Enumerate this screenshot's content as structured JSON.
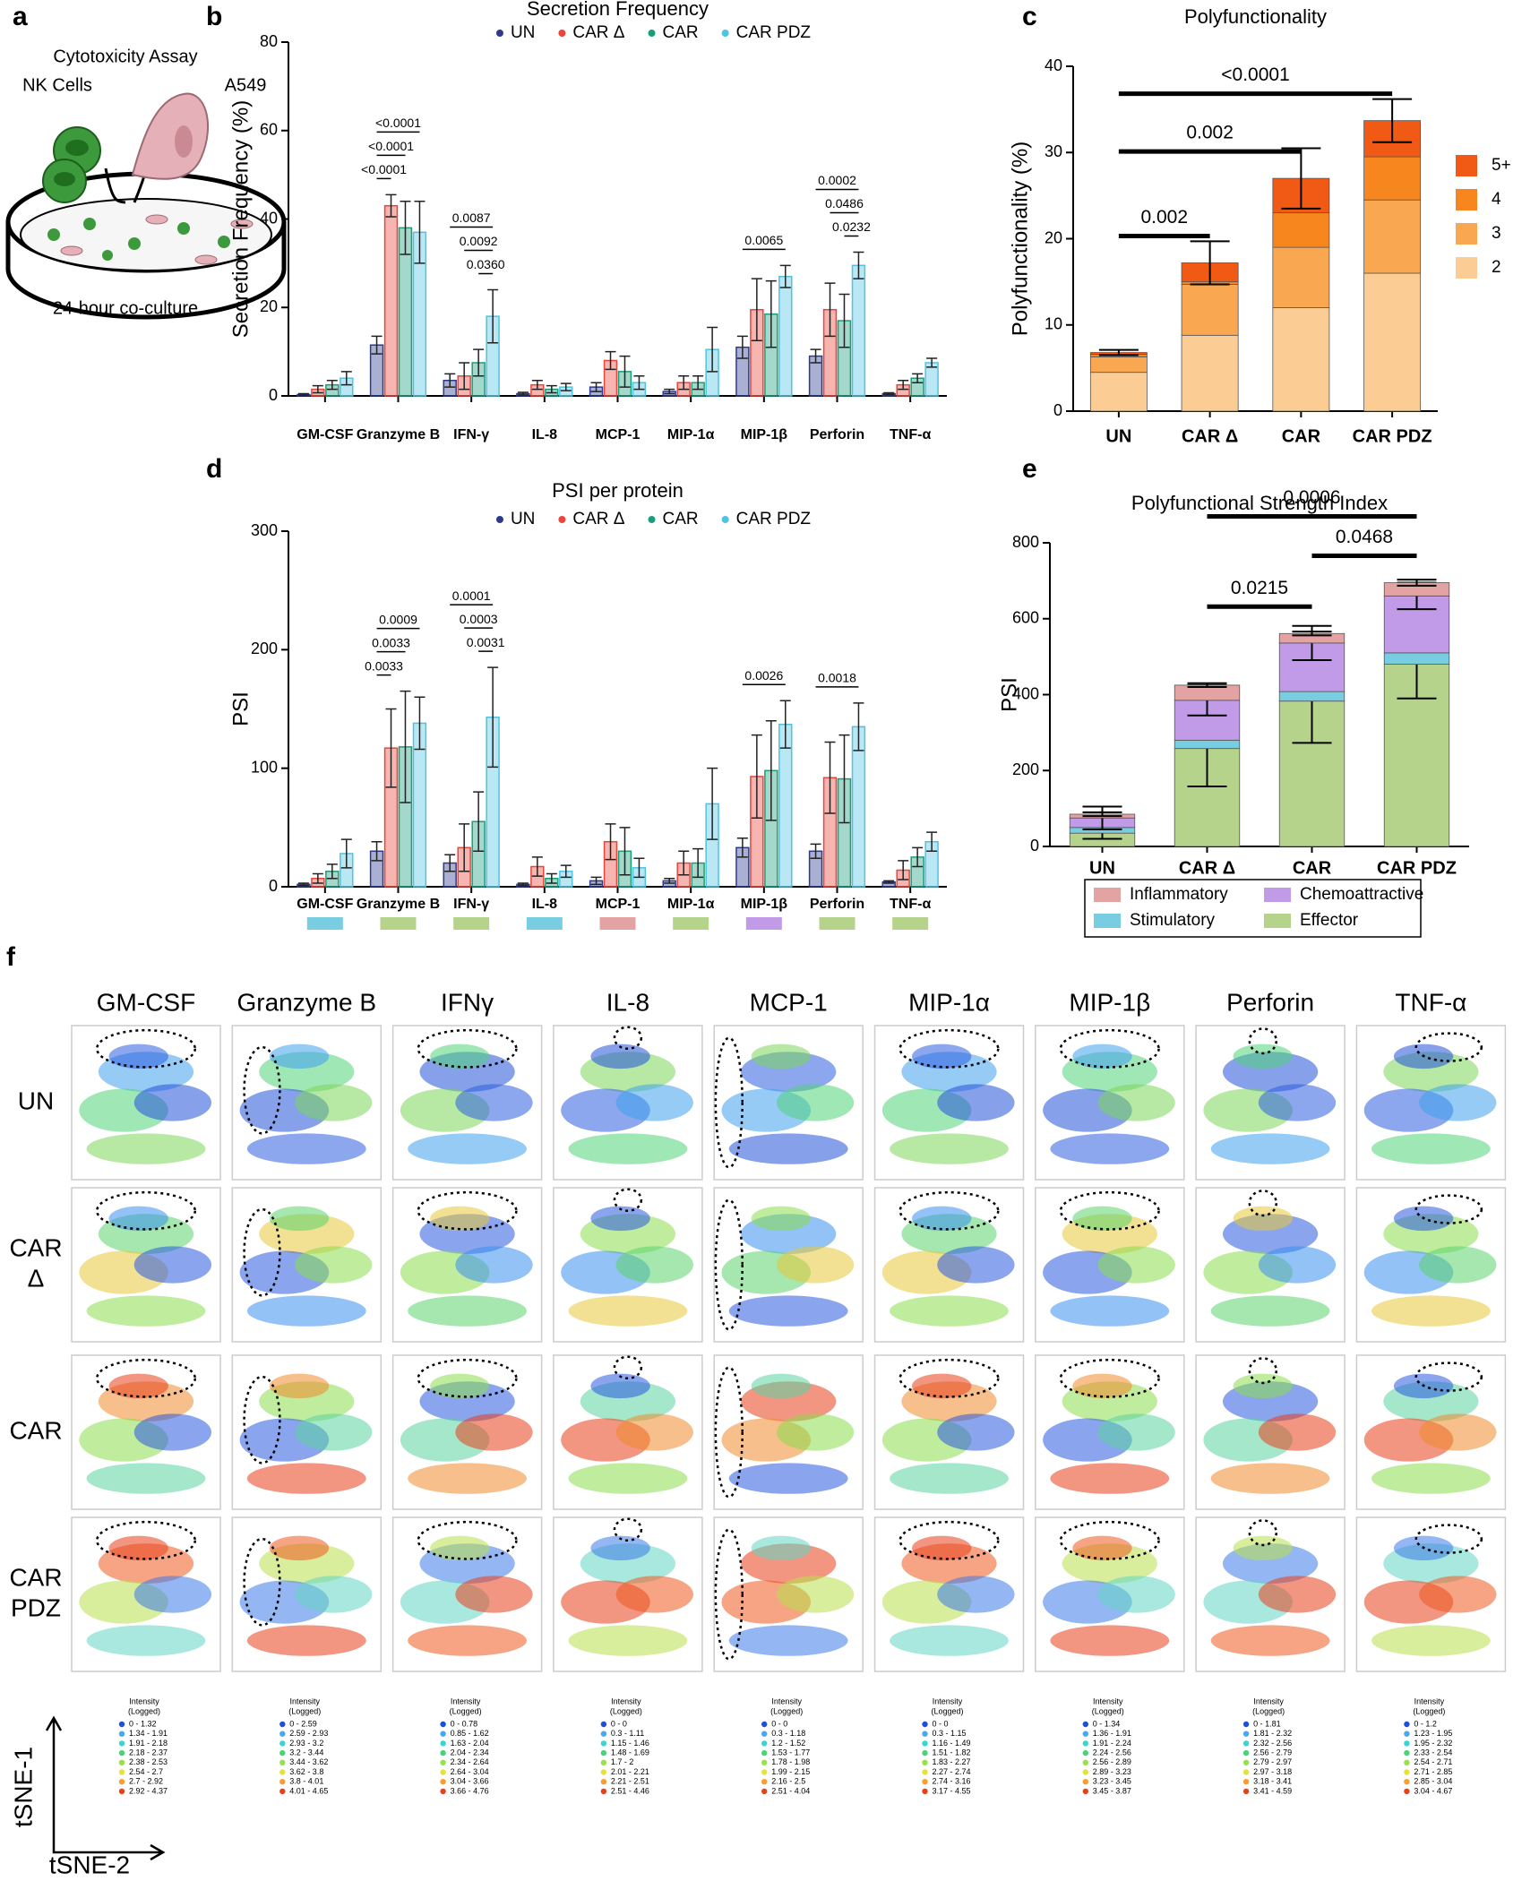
{
  "panel_a": {
    "panel": "a",
    "title": "Cytotoxicity Assay",
    "cells": "NK Cells",
    "target": "A549",
    "caption": "24-hour co-culture"
  },
  "chart_data": [
    {
      "type": "bar",
      "panel": "b",
      "title": "Secretion Frequency",
      "y_label": "Secretion Frequency (%)",
      "legend": "top",
      "categories": [
        "GM-CSF",
        "Granzyme B",
        "IFN-γ",
        "IL-8",
        "MCP-1",
        "MIP-1α",
        "MIP-1β",
        "Perforin",
        "TNF-α"
      ],
      "series": [
        {
          "name": "UN",
          "color": "#2b3a8f",
          "values": [
            0.3,
            11.5,
            3.5,
            0.5,
            2,
            1,
            11,
            9,
            0.5
          ],
          "errors": [
            0.2,
            2,
            1.5,
            0.3,
            1,
            0.5,
            2.5,
            1.5,
            0.2
          ]
        },
        {
          "name": "CAR Δ",
          "color": "#e8453c",
          "values": [
            1.5,
            43,
            4.5,
            2.5,
            8,
            3,
            19.5,
            19.5,
            2.5
          ],
          "errors": [
            0.8,
            2.5,
            3,
            1,
            2,
            1.5,
            7,
            6,
            1
          ]
        },
        {
          "name": "CAR",
          "color": "#1a9e7a",
          "values": [
            2.5,
            38,
            7.5,
            1.5,
            5.5,
            3,
            18.5,
            17,
            4
          ],
          "errors": [
            1,
            6,
            3,
            0.8,
            3.5,
            1.5,
            7.5,
            6,
            1
          ]
        },
        {
          "name": "CAR PDZ",
          "color": "#4fc3e0",
          "values": [
            4,
            37,
            18,
            2,
            3,
            10.5,
            27,
            29.5,
            7.5
          ],
          "errors": [
            1.5,
            7,
            6,
            0.8,
            1.5,
            5,
            2.5,
            3,
            1
          ]
        }
      ],
      "ylim": [
        0,
        80
      ],
      "yticks": [
        0,
        20,
        40,
        60,
        80
      ],
      "annotations": [
        {
          "label": "<0.0001",
          "category": 1,
          "from": 0,
          "to": 1
        },
        {
          "label": "<0.0001",
          "category": 1,
          "from": 0,
          "to": 2
        },
        {
          "label": "<0.0001",
          "category": 1,
          "from": 0,
          "to": 3
        },
        {
          "label": "0.0360",
          "category": 2,
          "from": 2,
          "to": 3
        },
        {
          "label": "0.0092",
          "category": 2,
          "from": 1,
          "to": 3
        },
        {
          "label": "0.0087",
          "category": 2,
          "from": 0,
          "to": 3
        },
        {
          "label": "0.0065",
          "category": 6,
          "from": 0,
          "to": 3
        },
        {
          "label": "0.0232",
          "category": 7,
          "from": 2,
          "to": 3
        },
        {
          "label": "0.0486",
          "category": 7,
          "from": 1,
          "to": 3
        },
        {
          "label": "0.0002",
          "category": 7,
          "from": 0,
          "to": 3
        }
      ]
    },
    {
      "type": "stacked_bar",
      "panel": "c",
      "title": "Polyfunctionality",
      "y_label": "Polyfunctionality (%)",
      "legend": "right",
      "categories": [
        "UN",
        "CAR Δ",
        "CAR",
        "CAR PDZ"
      ],
      "series": [
        {
          "name": "2",
          "color": "#fbcd95",
          "values": [
            4.5,
            8.8,
            12,
            16
          ]
        },
        {
          "name": "3",
          "color": "#f9a851",
          "values": [
            1.8,
            5.9,
            7,
            8.5
          ]
        },
        {
          "name": "4",
          "color": "#f7861f",
          "values": [
            0.3,
            0.3,
            4,
            5
          ]
        },
        {
          "name": "5+",
          "color": "#f05a14",
          "values": [
            0.2,
            2.2,
            4,
            4.2
          ],
          "errors": [
            0.3,
            2.5,
            3.5,
            2.5
          ]
        }
      ],
      "ylim": [
        0,
        40
      ],
      "yticks": [
        0,
        10,
        20,
        30,
        40
      ],
      "annotations": [
        {
          "label": "0.002",
          "from": 0,
          "to": 1
        },
        {
          "label": "0.002",
          "from": 0,
          "to": 2
        },
        {
          "label": "<0.0001",
          "from": 0,
          "to": 3
        }
      ]
    },
    {
      "type": "bar",
      "panel": "d",
      "title": "PSI per protein",
      "y_label": "PSI",
      "legend": "top",
      "categories": [
        "GM-CSF",
        "Granzyme B",
        "IFN-γ",
        "IL-8",
        "MCP-1",
        "MIP-1α",
        "MIP-1β",
        "Perforin",
        "TNF-α"
      ],
      "category_colors": [
        "#79cde0",
        "#b5d38a",
        "#b5d38a",
        "#79cde0",
        "#e3a3a3",
        "#b5d38a",
        "#c29be8",
        "#b5d38a",
        "#b5d38a"
      ],
      "series": [
        {
          "name": "UN",
          "color": "#2b3a8f",
          "values": [
            2,
            30,
            20,
            2,
            5,
            5,
            33,
            30,
            4
          ],
          "errors": [
            1,
            8,
            7,
            1,
            3,
            2,
            8,
            6,
            1
          ]
        },
        {
          "name": "CAR Δ",
          "color": "#e8453c",
          "values": [
            7,
            117,
            33,
            17,
            38,
            20,
            93,
            92,
            14
          ],
          "errors": [
            4,
            33,
            20,
            8,
            15,
            10,
            35,
            30,
            8
          ]
        },
        {
          "name": "CAR",
          "color": "#1a9e7a",
          "values": [
            13,
            118,
            55,
            7,
            30,
            20,
            98,
            91,
            25
          ],
          "errors": [
            6,
            47,
            25,
            4,
            20,
            12,
            42,
            37,
            8
          ]
        },
        {
          "name": "CAR PDZ",
          "color": "#4fc3e0",
          "values": [
            28,
            138,
            143,
            13,
            16,
            70,
            137,
            135,
            38
          ],
          "errors": [
            12,
            22,
            42,
            5,
            8,
            30,
            20,
            20,
            8
          ]
        }
      ],
      "ylim": [
        0,
        300
      ],
      "yticks": [
        0,
        100,
        200,
        300
      ],
      "annotations": [
        {
          "label": "0.0033",
          "category": 1,
          "from": 0,
          "to": 1
        },
        {
          "label": "0.0033",
          "category": 1,
          "from": 0,
          "to": 2
        },
        {
          "label": "0.0009",
          "category": 1,
          "from": 0,
          "to": 3
        },
        {
          "label": "0.0031",
          "category": 2,
          "from": 2,
          "to": 3
        },
        {
          "label": "0.0003",
          "category": 2,
          "from": 1,
          "to": 3
        },
        {
          "label": "0.0001",
          "category": 2,
          "from": 0,
          "to": 3
        },
        {
          "label": "0.0026",
          "category": 6,
          "from": 0,
          "to": 3
        },
        {
          "label": "0.0018",
          "category": 7,
          "from": 0,
          "to": 3
        }
      ]
    },
    {
      "type": "stacked_bar",
      "panel": "e",
      "title": "Polyfunctional Strength Index",
      "y_label": "PSI",
      "legend": "bottom",
      "categories": [
        "UN",
        "CAR Δ",
        "CAR",
        "CAR PDZ"
      ],
      "series": [
        {
          "name": "Effector",
          "color": "#b5d38a",
          "values": [
            35,
            258,
            383,
            480
          ],
          "errors": [
            15,
            100,
            110,
            90
          ]
        },
        {
          "name": "Stimulatory",
          "color": "#79cde0",
          "values": [
            15,
            22,
            25,
            30
          ]
        },
        {
          "name": "Chemoattractive",
          "color": "#c29be8",
          "values": [
            25,
            105,
            128,
            150
          ],
          "errors": [
            30,
            40,
            45,
            35
          ]
        },
        {
          "name": "Inflammatory",
          "color": "#e3a3a3",
          "values": [
            10,
            40,
            25,
            35
          ],
          "errors": [
            5,
            5,
            5,
            8
          ]
        }
      ],
      "ylim": [
        0,
        800
      ],
      "yticks": [
        0,
        200,
        400,
        600,
        800
      ],
      "annotations": [
        {
          "label": "0.0215",
          "from": 1,
          "to": 2
        },
        {
          "label": "0.0468",
          "from": 2,
          "to": 3
        },
        {
          "label": "0.0006",
          "from": 1,
          "to": 3
        }
      ]
    }
  ],
  "tsne": {
    "panel": "f",
    "proteins": [
      "GM-CSF",
      "Granzyme B",
      "IFNγ",
      "IL-8",
      "MCP-1",
      "MIP-1α",
      "MIP-1β",
      "Perforin",
      "TNF-α"
    ],
    "rows": [
      [
        "UN"
      ],
      [
        "CAR",
        "Δ"
      ],
      [
        "CAR"
      ],
      [
        "CAR",
        "PDZ"
      ]
    ],
    "legend_title": [
      "Intensity",
      "(Logged)"
    ],
    "legend_colors": [
      "#1f4fd6",
      "#4aa8f0",
      "#39d6d0",
      "#49d47c",
      "#9be04a",
      "#e8e040",
      "#f5a030",
      "#e8401c"
    ],
    "legend_ranges": [
      [
        "0 - 1.32",
        "1.34 - 1.91",
        "1.91 - 2.18",
        "2.18 - 2.37",
        "2.38 - 2.53",
        "2.54 - 2.7",
        "2.7 - 2.92",
        "2.92 - 4.37"
      ],
      [
        "0 - 2.59",
        "2.59 - 2.93",
        "2.93 - 3.2",
        "3.2 - 3.44",
        "3.44 - 3.62",
        "3.62 - 3.8",
        "3.8 - 4.01",
        "4.01 - 4.65"
      ],
      [
        "0 - 0.78",
        "0.85 - 1.62",
        "1.63 - 2.04",
        "2.04 - 2.34",
        "2.34 - 2.64",
        "2.64 - 3.04",
        "3.04 - 3.66",
        "3.66 - 4.76"
      ],
      [
        "0 - 0",
        "0.3 - 1.11",
        "1.15 - 1.46",
        "1.48 - 1.69",
        "1.7 - 2",
        "2.01 - 2.21",
        "2.21 - 2.51",
        "2.51 - 4.46"
      ],
      [
        "0 - 0",
        "0.3 - 1.18",
        "1.2 - 1.52",
        "1.53 - 1.77",
        "1.78 - 1.98",
        "1.99 - 2.15",
        "2.16 - 2.5",
        "2.51 - 4.04"
      ],
      [
        "0 - 0",
        "0.3 - 1.15",
        "1.16 - 1.49",
        "1.51 - 1.82",
        "1.83 - 2.27",
        "2.27 - 2.74",
        "2.74 - 3.16",
        "3.17 - 4.55"
      ],
      [
        "0 - 1.34",
        "1.36 - 1.91",
        "1.91 - 2.24",
        "2.24 - 2.56",
        "2.56 - 2.89",
        "2.89 - 3.23",
        "3.23 - 3.45",
        "3.45 - 3.87"
      ],
      [
        "0 - 1.81",
        "1.81 - 2.32",
        "2.32 - 2.56",
        "2.56 - 2.79",
        "2.79 - 2.97",
        "2.97 - 3.18",
        "3.18 - 3.41",
        "3.41 - 4.59"
      ],
      [
        "0 - 1.2",
        "1.23 - 1.95",
        "1.95 - 2.32",
        "2.33 - 2.54",
        "2.54 - 2.71",
        "2.71 - 2.85",
        "2.85 - 3.04",
        "3.04 - 4.67"
      ]
    ],
    "y_axis": "tSNE-1",
    "x_axis": "tSNE-2"
  }
}
